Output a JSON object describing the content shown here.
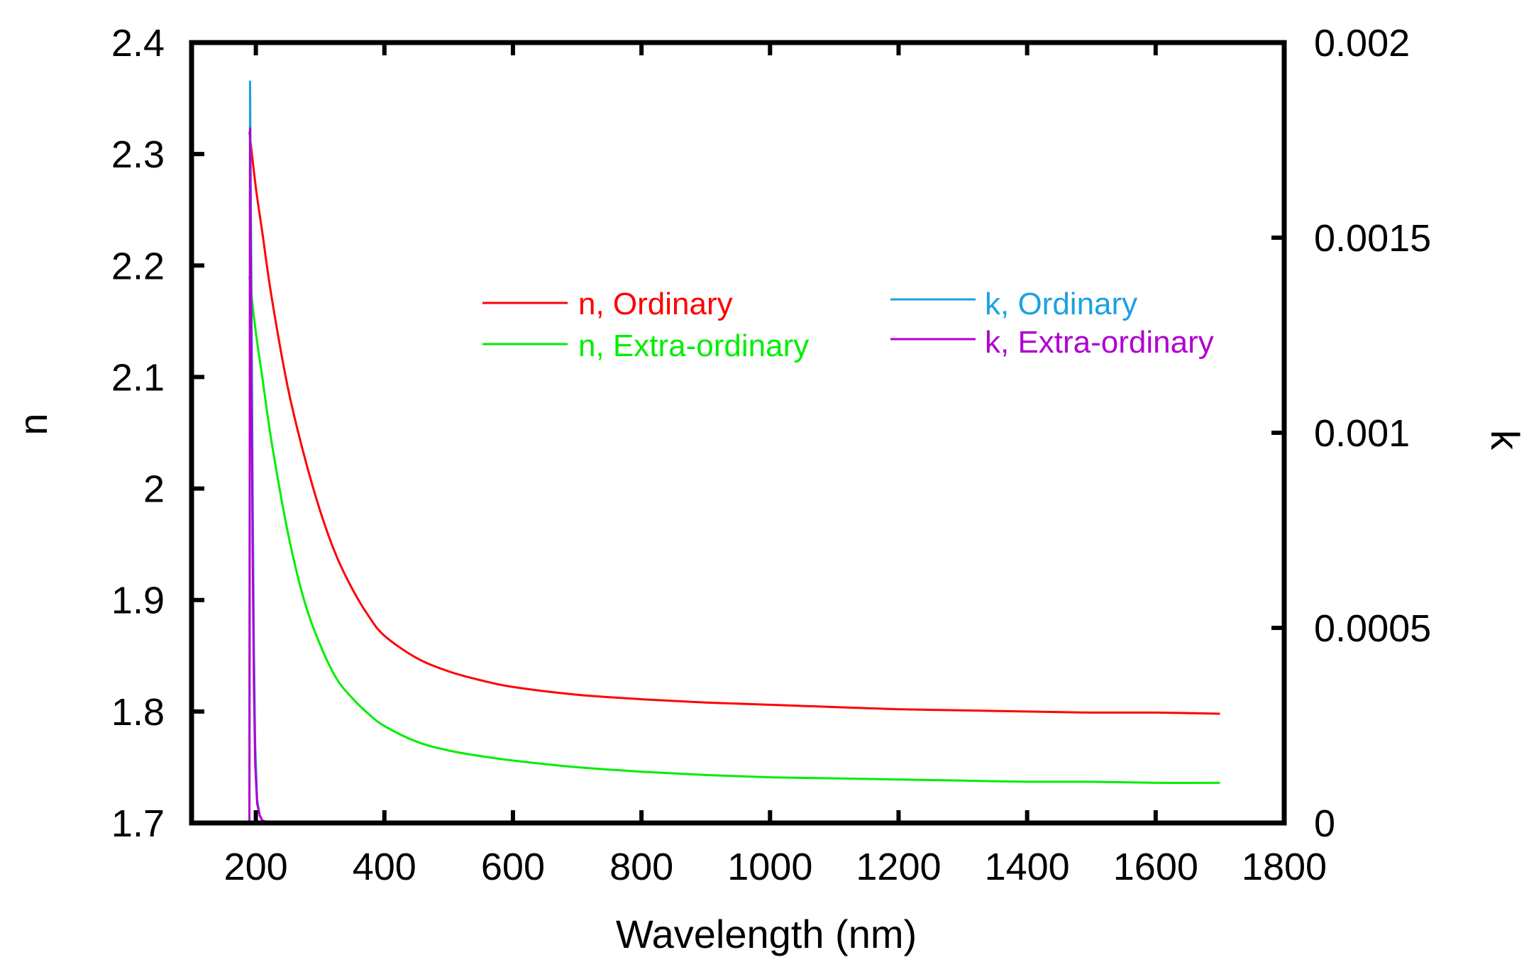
{
  "chart_data": {
    "type": "line",
    "xlabel": "Wavelength (nm)",
    "ylabel_left": "n",
    "ylabel_right": "k",
    "xlim": [
      100,
      1800
    ],
    "ylim_left": [
      1.7,
      2.4
    ],
    "ylim_right": [
      0,
      0.002
    ],
    "x_ticks": [
      200,
      400,
      600,
      800,
      1000,
      1200,
      1400,
      1600,
      1800
    ],
    "x_tick_labels": [
      "200",
      "400",
      "600",
      "800",
      "1000",
      "1200",
      "1400",
      "1600",
      "1800"
    ],
    "y_left_ticks": [
      1.7,
      1.8,
      1.9,
      2.0,
      2.1,
      2.2,
      2.3,
      2.4
    ],
    "y_left_tick_labels": [
      "1.7",
      "1.8",
      "1.9",
      "2",
      "2.1",
      "2.2",
      "2.3",
      "2.4"
    ],
    "y_right_ticks": [
      0,
      0.0005,
      0.001,
      0.0015,
      0.002
    ],
    "y_right_tick_labels": [
      "0",
      "0.0005",
      "0.001",
      "0.0015",
      "0.002"
    ],
    "grid": false,
    "legend_position": "top-center",
    "series": [
      {
        "name": "n, Ordinary",
        "axis": "left",
        "color": "#ff0000",
        "x": [
          190,
          200,
          210,
          225,
          250,
          275,
          300,
          325,
          350,
          375,
          400,
          450,
          500,
          550,
          600,
          700,
          800,
          900,
          1000,
          1100,
          1200,
          1300,
          1400,
          1500,
          1600,
          1700
        ],
        "y": [
          2.32,
          2.27,
          2.23,
          2.17,
          2.09,
          2.03,
          1.98,
          1.94,
          1.91,
          1.886,
          1.868,
          1.848,
          1.836,
          1.828,
          1.822,
          1.815,
          1.811,
          1.808,
          1.806,
          1.804,
          1.802,
          1.801,
          1.8,
          1.799,
          1.799,
          1.798
        ]
      },
      {
        "name": "n, Extra-ordinary",
        "axis": "left",
        "color": "#00ee00",
        "x": [
          190,
          200,
          210,
          225,
          250,
          275,
          300,
          325,
          350,
          375,
          400,
          450,
          500,
          550,
          600,
          700,
          800,
          900,
          1000,
          1100,
          1200,
          1300,
          1400,
          1500,
          1600,
          1700
        ],
        "y": [
          2.19,
          2.14,
          2.1,
          2.04,
          1.96,
          1.9,
          1.86,
          1.83,
          1.812,
          1.798,
          1.787,
          1.773,
          1.765,
          1.76,
          1.756,
          1.75,
          1.746,
          1.743,
          1.741,
          1.74,
          1.739,
          1.738,
          1.737,
          1.737,
          1.736,
          1.736
        ]
      },
      {
        "name": "k, Ordinary",
        "axis": "right",
        "color": "#1ba1e2",
        "x": [
          190,
          191,
          193,
          195,
          197,
          199,
          202,
          206,
          210,
          220,
          240,
          1700
        ],
        "y": [
          0.0,
          0.0019,
          0.0014,
          0.00085,
          0.00045,
          0.0002,
          6e-05,
          2e-05,
          6e-06,
          2e-06,
          0.0,
          0.0
        ]
      },
      {
        "name": "k, Extra-ordinary",
        "axis": "right",
        "color": "#b000d0",
        "x": [
          190,
          191,
          193,
          195,
          197,
          199,
          202,
          206,
          210,
          220,
          240,
          1700
        ],
        "y": [
          0.0,
          0.00178,
          0.0012,
          0.0007,
          0.00035,
          0.00015,
          5e-05,
          2e-05,
          6e-06,
          2e-06,
          0.0,
          0.0
        ]
      }
    ]
  }
}
